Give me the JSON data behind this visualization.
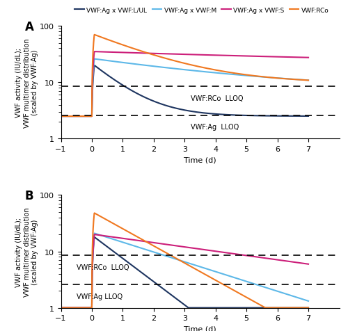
{
  "colors": {
    "LUL": "#1e3560",
    "M": "#5db8e8",
    "S": "#cc1f7a",
    "RCo": "#f07820"
  },
  "legend_labels": [
    "VWF:Ag x VWF:L/UL",
    "VWF:Ag x VWF:M",
    "VWF:Ag x VWF:S",
    "VWF:RCo"
  ],
  "lloq_RCo": 8.5,
  "lloq_Ag": 2.6,
  "lloq_RCo_label": "VWF:RCo  LLOQ",
  "lloq_Ag_label_A": "VWF:Ag  LLOQ",
  "lloq_RCo_label_B": "VWF:RCo  LLOQ",
  "lloq_Ag_label_B": "VWF:Ag LLOQ",
  "xlabel": "Time (d)",
  "ylabel": "VWF activity (IU/dL);\nVWF multimer distribution\n(scaled by VWF:Ag)",
  "xlim": [
    -1,
    8
  ],
  "xticks": [
    -1,
    0,
    1,
    2,
    3,
    4,
    5,
    6,
    7
  ],
  "panel_A_label": "A",
  "panel_B_label": "B",
  "A_pre_level": 2.5,
  "A_peak_RCo": 70.0,
  "A_peak_S": 35.0,
  "A_peak_M": 26.0,
  "A_peak_LUL": 20.0,
  "A_floor_RCo": 9.5,
  "A_floor_S": 18.0,
  "A_floor_M": 7.0,
  "A_floor_LUL": 2.5,
  "A_k_RCo": 0.55,
  "A_k_S": 0.085,
  "A_k_M": 0.23,
  "A_k_LUL": 1.1,
  "B_pre_level": 1.0,
  "B_peak_RCo": 48.0,
  "B_peak_S": 20.0,
  "B_peak_M": 21.0,
  "B_peak_LUL": 18.0,
  "B_k_RCo": 0.7,
  "B_k_S": 0.175,
  "B_k_M": 0.4,
  "B_k_LUL": 0.95
}
